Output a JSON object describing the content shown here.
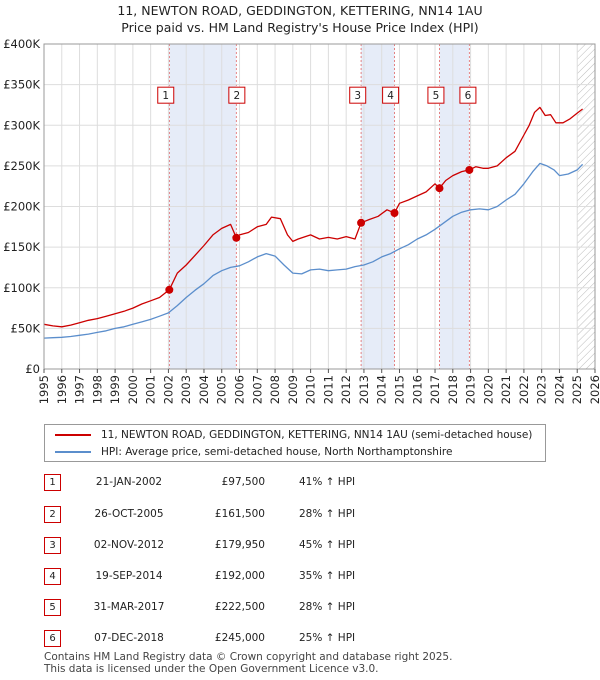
{
  "chart_data": {
    "type": "line",
    "title": "11, NEWTON ROAD, GEDDINGTON, KETTERING, NN14 1AU",
    "subtitle": "Price paid vs. HM Land Registry's House Price Index (HPI)",
    "xlim": [
      1995,
      2026
    ],
    "ylim": [
      0,
      400000
    ],
    "x_ticks": [
      "1995",
      "1996",
      "1997",
      "1998",
      "1999",
      "2000",
      "2001",
      "2002",
      "2003",
      "2004",
      "2005",
      "2006",
      "2007",
      "2008",
      "2009",
      "2010",
      "2011",
      "2012",
      "2013",
      "2014",
      "2015",
      "2016",
      "2017",
      "2018",
      "2019",
      "2020",
      "2021",
      "2022",
      "2023",
      "2024",
      "2025",
      "2026"
    ],
    "y_ticks": [
      {
        "value": 0,
        "label": "£0"
      },
      {
        "value": 50000,
        "label": "£50K"
      },
      {
        "value": 100000,
        "label": "£100K"
      },
      {
        "value": 150000,
        "label": "£150K"
      },
      {
        "value": 200000,
        "label": "£200K"
      },
      {
        "value": 250000,
        "label": "£250K"
      },
      {
        "value": 300000,
        "label": "£300K"
      },
      {
        "value": 350000,
        "label": "£350K"
      },
      {
        "value": 400000,
        "label": "£400K"
      }
    ],
    "grid": true,
    "shaded_ranges": [
      [
        2002.05,
        2005.82
      ],
      [
        2012.84,
        2014.72
      ],
      [
        2017.25,
        2018.93
      ]
    ],
    "future_hatch_from": 2025.0,
    "series": [
      {
        "name": "11, NEWTON ROAD, GEDDINGTON, KETTERING, NN14 1AU (semi-detached house)",
        "color": "#cc0000",
        "x": [
          1995.0,
          1995.5,
          1996.0,
          1996.5,
          1997.0,
          1997.5,
          1998.0,
          1998.5,
          1999.0,
          1999.5,
          2000.0,
          2000.5,
          2001.0,
          2001.5,
          2002.05,
          2002.5,
          2003.0,
          2003.5,
          2004.0,
          2004.5,
          2005.0,
          2005.5,
          2005.82,
          2006.0,
          2006.5,
          2007.0,
          2007.5,
          2007.8,
          2008.3,
          2008.7,
          2009.0,
          2009.3,
          2009.7,
          2010.0,
          2010.5,
          2011.0,
          2011.5,
          2012.0,
          2012.5,
          2012.84,
          2013.3,
          2013.8,
          2014.3,
          2014.72,
          2015.0,
          2015.5,
          2016.0,
          2016.5,
          2017.0,
          2017.25,
          2017.6,
          2018.0,
          2018.5,
          2018.93,
          2019.3,
          2019.7,
          2020.0,
          2020.5,
          2021.0,
          2021.5,
          2022.0,
          2022.3,
          2022.6,
          2022.9,
          2023.2,
          2023.5,
          2023.8,
          2024.2,
          2024.6,
          2025.0,
          2025.3
        ],
        "values": [
          55000,
          53000,
          52000,
          54000,
          57000,
          60000,
          62000,
          65000,
          68000,
          71000,
          75000,
          80000,
          84000,
          88000,
          97500,
          118000,
          128000,
          140000,
          152000,
          165000,
          173000,
          178000,
          161500,
          165000,
          168000,
          175000,
          178000,
          187000,
          185000,
          165000,
          157000,
          160000,
          163000,
          165000,
          160000,
          162000,
          160000,
          163000,
          160000,
          179950,
          184000,
          188000,
          196000,
          192000,
          204000,
          208000,
          213000,
          218000,
          228000,
          222500,
          232000,
          238000,
          243000,
          245000,
          249000,
          247000,
          247000,
          250000,
          260000,
          268000,
          288000,
          300000,
          316000,
          322000,
          312000,
          313000,
          303000,
          303000,
          308000,
          315000,
          320000
        ]
      },
      {
        "name": "HPI: Average price, semi-detached house, North Northamptonshire",
        "color": "#5b8ecc",
        "x": [
          1995.0,
          1995.5,
          1996.0,
          1996.5,
          1997.0,
          1997.5,
          1998.0,
          1998.5,
          1999.0,
          1999.5,
          2000.0,
          2000.5,
          2001.0,
          2001.5,
          2002.0,
          2002.5,
          2003.0,
          2003.5,
          2004.0,
          2004.5,
          2005.0,
          2005.5,
          2006.0,
          2006.5,
          2007.0,
          2007.5,
          2008.0,
          2008.5,
          2009.0,
          2009.5,
          2010.0,
          2010.5,
          2011.0,
          2011.5,
          2012.0,
          2012.5,
          2013.0,
          2013.5,
          2014.0,
          2014.5,
          2015.0,
          2015.5,
          2016.0,
          2016.5,
          2017.0,
          2017.5,
          2018.0,
          2018.5,
          2019.0,
          2019.5,
          2020.0,
          2020.5,
          2021.0,
          2021.5,
          2022.0,
          2022.5,
          2022.9,
          2023.3,
          2023.7,
          2024.0,
          2024.5,
          2025.0,
          2025.3
        ],
        "values": [
          38000,
          38500,
          39000,
          40000,
          41500,
          43000,
          45000,
          47000,
          50000,
          52000,
          55000,
          58000,
          61000,
          65000,
          69000,
          78000,
          88000,
          97000,
          105000,
          115000,
          121000,
          125000,
          127000,
          132000,
          138000,
          142000,
          139000,
          128000,
          118000,
          117000,
          122000,
          123000,
          121000,
          122000,
          123000,
          126000,
          128000,
          132000,
          138000,
          142000,
          148000,
          153000,
          160000,
          165000,
          172000,
          180000,
          188000,
          193000,
          196000,
          197000,
          196000,
          200000,
          208000,
          215000,
          228000,
          243000,
          253000,
          250000,
          245000,
          238000,
          240000,
          245000,
          252000
        ]
      }
    ],
    "sales": [
      {
        "n": "1",
        "x": 2002.05,
        "value": 97500
      },
      {
        "n": "2",
        "x": 2005.82,
        "value": 161500
      },
      {
        "n": "3",
        "x": 2012.84,
        "value": 179950
      },
      {
        "n": "4",
        "x": 2014.72,
        "value": 192000
      },
      {
        "n": "5",
        "x": 2017.25,
        "value": 222500
      },
      {
        "n": "6",
        "x": 2018.93,
        "value": 245000
      }
    ],
    "marker_boxes": [
      {
        "n": "1",
        "x": 2001.85
      },
      {
        "n": "2",
        "x": 2005.85
      },
      {
        "n": "3",
        "x": 2012.65
      },
      {
        "n": "4",
        "x": 2014.5
      },
      {
        "n": "5",
        "x": 2017.05
      },
      {
        "n": "6",
        "x": 2018.85
      }
    ],
    "marker_box_value": 337000
  },
  "legend": {
    "property_label": "11, NEWTON ROAD, GEDDINGTON, KETTERING, NN14 1AU (semi-detached house)",
    "hpi_label": "HPI: Average price, semi-detached house, North Northamptonshire",
    "property_color": "#cc0000",
    "hpi_color": "#5b8ecc"
  },
  "sales_table": [
    {
      "n": "1",
      "date": "21-JAN-2002",
      "price": "£97,500",
      "hpi": "41% ↑ HPI"
    },
    {
      "n": "2",
      "date": "26-OCT-2005",
      "price": "£161,500",
      "hpi": "28% ↑ HPI"
    },
    {
      "n": "3",
      "date": "02-NOV-2012",
      "price": "£179,950",
      "hpi": "45% ↑ HPI"
    },
    {
      "n": "4",
      "date": "19-SEP-2014",
      "price": "£192,000",
      "hpi": "35% ↑ HPI"
    },
    {
      "n": "5",
      "date": "31-MAR-2017",
      "price": "£222,500",
      "hpi": "28% ↑ HPI"
    },
    {
      "n": "6",
      "date": "07-DEC-2018",
      "price": "£245,000",
      "hpi": "25% ↑ HPI"
    }
  ],
  "footer": {
    "line1": "Contains HM Land Registry data © Crown copyright and database right 2025.",
    "line2": "This data is licensed under the Open Government Licence v3.0."
  }
}
